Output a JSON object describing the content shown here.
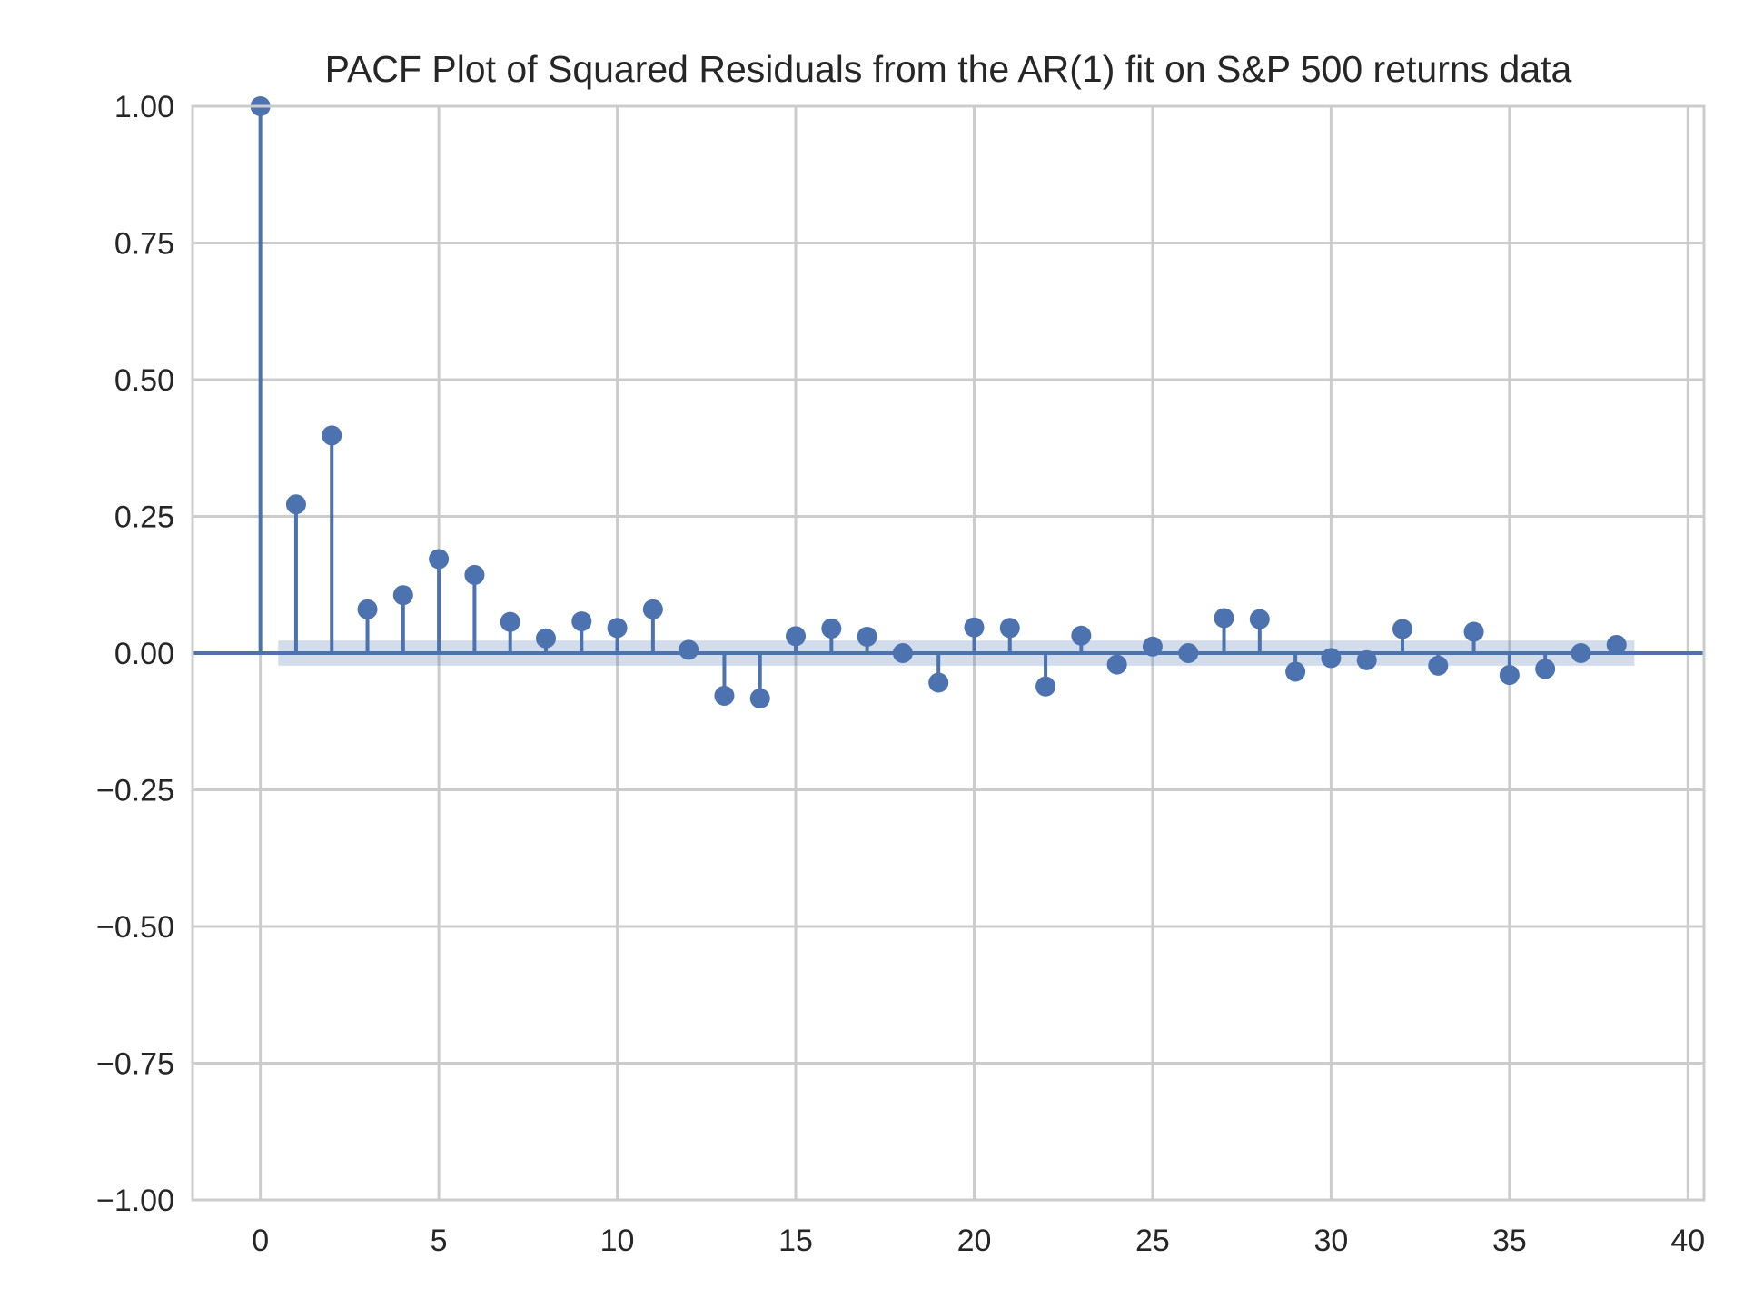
{
  "chart_data": {
    "type": "stem",
    "title": "PACF Plot of Squared Residuals from the AR(1) fit on S&P 500 returns data",
    "xlabel": "",
    "ylabel": "",
    "xlim": [
      -1.9,
      40.45
    ],
    "ylim": [
      -1.0,
      1.0
    ],
    "xticks": [
      0,
      5,
      10,
      15,
      20,
      25,
      30,
      35,
      40
    ],
    "xtick_labels": [
      "0",
      "5",
      "10",
      "15",
      "20",
      "25",
      "30",
      "35",
      "40"
    ],
    "yticks": [
      1.0,
      0.75,
      0.5,
      0.25,
      0.0,
      -0.25,
      -0.5,
      -0.75,
      -1.0
    ],
    "ytick_labels": [
      "1.00",
      "0.75",
      "0.50",
      "0.25",
      "0.00",
      "−0.25",
      "−0.50",
      "−0.75",
      "−1.00"
    ],
    "grid": true,
    "colors": {
      "marker": "#4c72b0",
      "band": "#4c72b0",
      "grid": "#cccccc",
      "text": "#262626"
    },
    "confidence_band": {
      "x_start": 0.5,
      "x_end": 38.5,
      "lower": -0.023,
      "upper": 0.023
    },
    "lags": [
      0,
      1,
      2,
      3,
      4,
      5,
      6,
      7,
      8,
      9,
      10,
      11,
      12,
      13,
      14,
      15,
      16,
      17,
      18,
      19,
      20,
      21,
      22,
      23,
      24,
      25,
      26,
      27,
      28,
      29,
      30,
      31,
      32,
      33,
      34,
      35,
      36,
      37,
      38
    ],
    "values": [
      1.0,
      0.272,
      0.398,
      0.08,
      0.106,
      0.172,
      0.143,
      0.057,
      0.027,
      0.058,
      0.046,
      0.08,
      0.006,
      -0.078,
      -0.083,
      0.031,
      0.045,
      0.03,
      0.0,
      -0.054,
      0.047,
      0.046,
      -0.061,
      0.032,
      -0.021,
      0.012,
      0.0,
      0.064,
      0.062,
      -0.034,
      -0.009,
      -0.013,
      0.044,
      -0.023,
      0.039,
      -0.04,
      -0.029,
      0.0,
      0.015
    ]
  }
}
